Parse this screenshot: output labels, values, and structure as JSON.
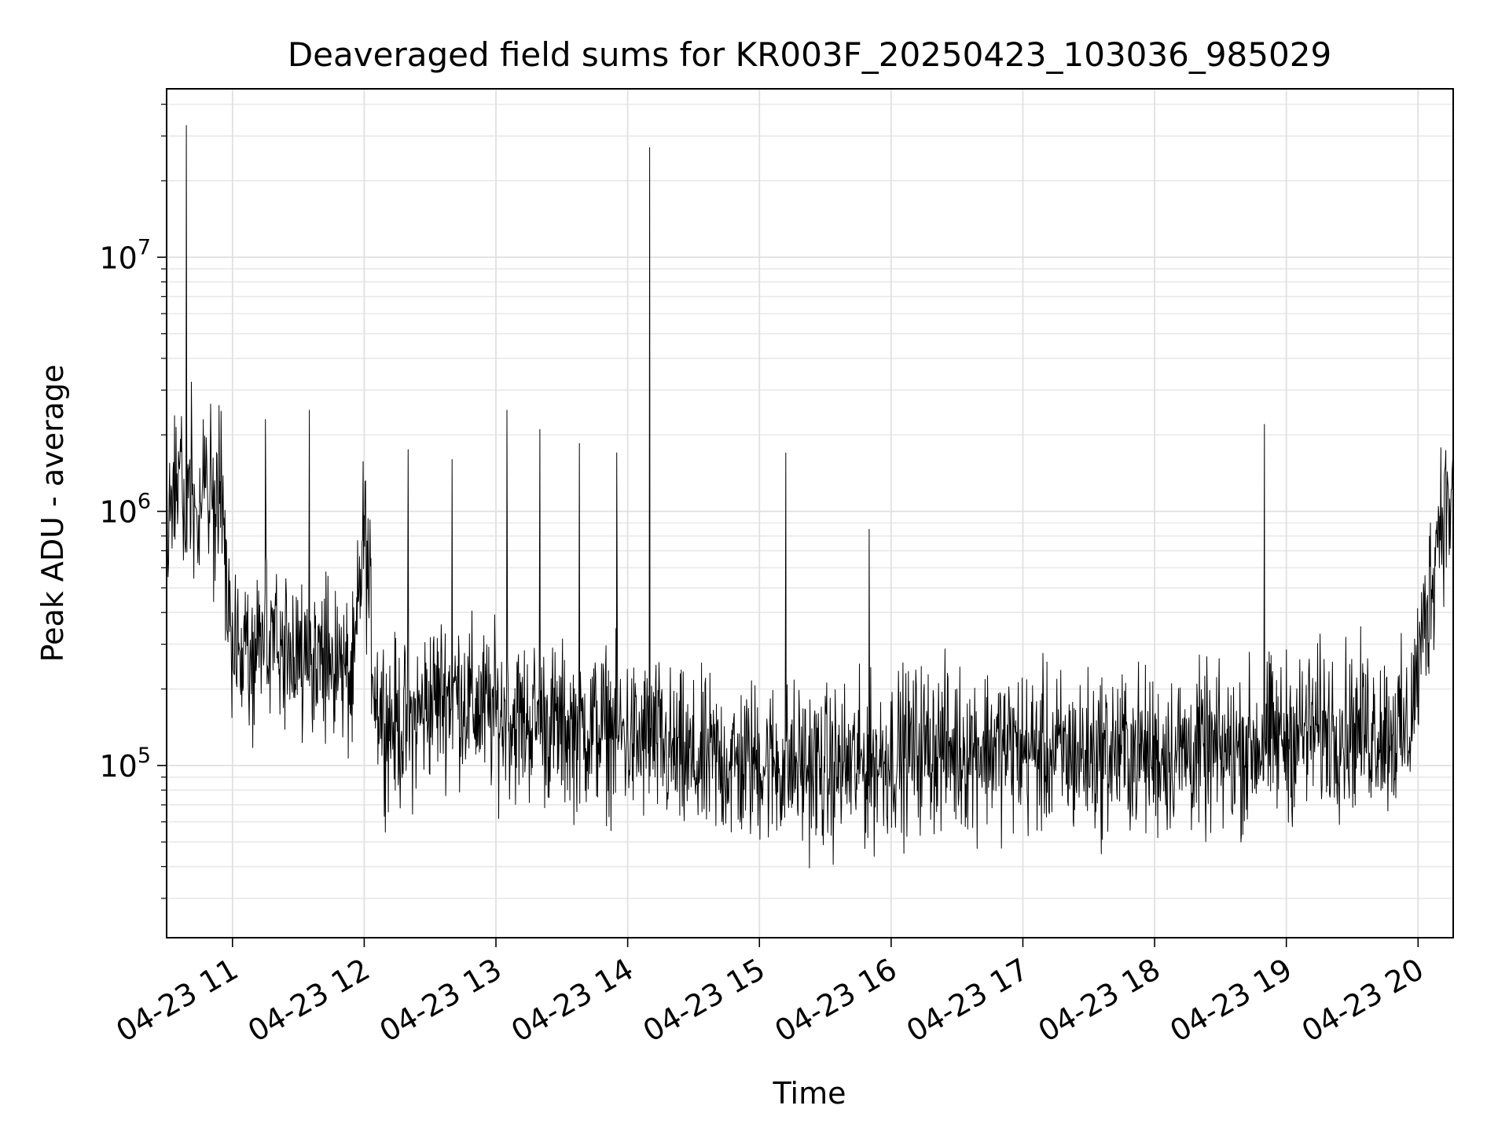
{
  "chart_data": {
    "type": "line",
    "title": "Deaveraged field sums for KR003F_20250423_103036_985029",
    "xlabel": "Time",
    "ylabel": "Peak ADU - average",
    "yscale": "log",
    "grid": true,
    "grid_minor": true,
    "line_color": "#000000",
    "x_type": "datetime",
    "xlim": [
      "2025-04-23 10:30",
      "2025-04-23 20:16"
    ],
    "ylim": [
      21000,
      46000000
    ],
    "x_ticks": [
      {
        "value": "2025-04-23 11:00",
        "label": "04-23 11"
      },
      {
        "value": "2025-04-23 12:00",
        "label": "04-23 12"
      },
      {
        "value": "2025-04-23 13:00",
        "label": "04-23 13"
      },
      {
        "value": "2025-04-23 14:00",
        "label": "04-23 14"
      },
      {
        "value": "2025-04-23 15:00",
        "label": "04-23 15"
      },
      {
        "value": "2025-04-23 16:00",
        "label": "04-23 16"
      },
      {
        "value": "2025-04-23 17:00",
        "label": "04-23 17"
      },
      {
        "value": "2025-04-23 18:00",
        "label": "04-23 18"
      },
      {
        "value": "2025-04-23 19:00",
        "label": "04-23 19"
      },
      {
        "value": "2025-04-23 20:00",
        "label": "04-23 20"
      }
    ],
    "y_ticks": [
      {
        "value": 100000,
        "base": "10",
        "exp": "5"
      },
      {
        "value": 1000000,
        "base": "10",
        "exp": "6"
      },
      {
        "value": 10000000,
        "base": "10",
        "exp": "7"
      }
    ],
    "series": [
      {
        "values_note_excluded": false,
        "x": [
          "2025-04-23 10:30",
          "2025-04-23 10:33",
          "2025-04-23 10:36",
          "2025-04-23 10:39",
          "2025-04-23 10:42",
          "2025-04-23 10:45",
          "2025-04-23 10:48",
          "2025-04-23 10:51",
          "2025-04-23 10:54",
          "2025-04-23 10:57",
          "2025-04-23 11:00",
          "2025-04-23 11:05",
          "2025-04-23 11:10",
          "2025-04-23 11:15",
          "2025-04-23 11:20",
          "2025-04-23 11:25",
          "2025-04-23 11:30",
          "2025-04-23 11:35",
          "2025-04-23 11:40",
          "2025-04-23 11:45",
          "2025-04-23 11:50",
          "2025-04-23 11:55",
          "2025-04-23 12:00",
          "2025-04-23 12:05",
          "2025-04-23 12:10",
          "2025-04-23 12:20",
          "2025-04-23 12:30",
          "2025-04-23 12:40",
          "2025-04-23 12:50",
          "2025-04-23 13:00",
          "2025-04-23 13:10",
          "2025-04-23 13:20",
          "2025-04-23 13:30",
          "2025-04-23 13:40",
          "2025-04-23 13:50",
          "2025-04-23 14:00",
          "2025-04-23 14:05",
          "2025-04-23 14:10",
          "2025-04-23 14:20",
          "2025-04-23 14:30",
          "2025-04-23 14:40",
          "2025-04-23 14:50",
          "2025-04-23 15:00",
          "2025-04-23 15:10",
          "2025-04-23 15:20",
          "2025-04-23 15:30",
          "2025-04-23 15:40",
          "2025-04-23 15:50",
          "2025-04-23 16:00",
          "2025-04-23 16:15",
          "2025-04-23 16:30",
          "2025-04-23 16:45",
          "2025-04-23 17:00",
          "2025-04-23 17:15",
          "2025-04-23 17:30",
          "2025-04-23 17:45",
          "2025-04-23 18:00",
          "2025-04-23 18:15",
          "2025-04-23 18:30",
          "2025-04-23 18:45",
          "2025-04-23 19:00",
          "2025-04-23 19:15",
          "2025-04-23 19:30",
          "2025-04-23 19:45",
          "2025-04-23 19:55",
          "2025-04-23 20:05",
          "2025-04-23 20:10",
          "2025-04-23 20:16"
        ],
        "values": [
          900000,
          1100000,
          1200000,
          33000000,
          1100000,
          1000000,
          1300000,
          900000,
          1500000,
          600000,
          300000,
          250000,
          280000,
          300000,
          320000,
          260000,
          280000,
          300000,
          250000,
          260000,
          240000,
          200000,
          900000,
          200000,
          150000,
          140000,
          180000,
          200000,
          170000,
          160000,
          150000,
          150000,
          140000,
          140000,
          140000,
          130000,
          120000,
          130000,
          110000,
          100000,
          105000,
          100000,
          105000,
          100000,
          100000,
          95000,
          100000,
          100000,
          110000,
          120000,
          115000,
          120000,
          115000,
          110000,
          110000,
          115000,
          110000,
          115000,
          110000,
          120000,
          130000,
          140000,
          140000,
          140000,
          130000,
          450000,
          1000000,
          1100000
        ]
      }
    ],
    "spikes": [
      {
        "x": "2025-04-23 10:39",
        "value": 33000000
      },
      {
        "x": "2025-04-23 14:10",
        "value": 27000000
      },
      {
        "x": "2025-04-23 15:12",
        "value": 1700000
      },
      {
        "x": "2025-04-23 15:50",
        "value": 850000
      },
      {
        "x": "2025-04-23 18:50",
        "value": 2200000
      },
      {
        "x": "2025-04-23 13:05",
        "value": 2500000
      },
      {
        "x": "2025-04-23 11:35",
        "value": 2500000
      },
      {
        "x": "2025-04-23 11:15",
        "value": 2300000
      },
      {
        "x": "2025-04-23 13:20",
        "value": 2100000
      },
      {
        "x": "2025-04-23 13:38",
        "value": 1850000
      },
      {
        "x": "2025-04-23 13:55",
        "value": 1700000
      },
      {
        "x": "2025-04-23 12:40",
        "value": 1600000
      },
      {
        "x": "2025-04-23 12:20",
        "value": 1750000
      }
    ]
  }
}
